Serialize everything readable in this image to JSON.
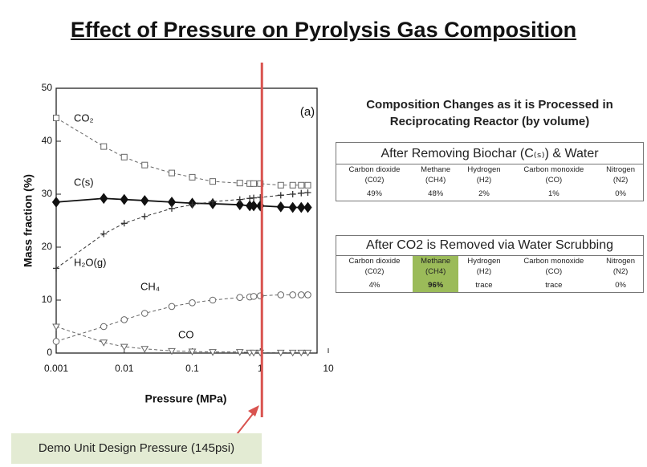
{
  "title": "Effect of Pressure on Pyrolysis Gas Composition",
  "chart_data": {
    "type": "line",
    "annotation": "(a)",
    "xlabel": "Pressure (MPa)",
    "ylabel": "Mass fraction (%)",
    "xscale": "log",
    "xlim": [
      0.001,
      10
    ],
    "xticks": [
      0.001,
      0.01,
      0.1,
      1,
      10
    ],
    "ylim": [
      0,
      50
    ],
    "yticks": [
      0,
      10,
      20,
      30,
      40,
      50
    ],
    "x": [
      0.001,
      0.005,
      0.01,
      0.02,
      0.05,
      0.1,
      0.2,
      0.5,
      0.7,
      0.8,
      1,
      2,
      3,
      4,
      5
    ],
    "series": [
      {
        "name": "CO₂",
        "color": "#666666",
        "marker": "square",
        "dash": true,
        "values": [
          44.4,
          39,
          37,
          35.5,
          34,
          33.2,
          32.4,
          32.1,
          32,
          32,
          32,
          31.7,
          31.7,
          31.7,
          31.7
        ]
      },
      {
        "name": "C(s)",
        "color": "#111111",
        "marker": "diamond",
        "dash": false,
        "values": [
          28.5,
          29.2,
          29,
          28.8,
          28.5,
          28.3,
          28.2,
          28,
          27.8,
          27.8,
          27.8,
          27.6,
          27.5,
          27.5,
          27.5
        ]
      },
      {
        "name": "H₂O(g)",
        "color": "#333333",
        "marker": "plus",
        "dash": true,
        "values": [
          16,
          22.5,
          24.5,
          25.8,
          27.3,
          28,
          28.6,
          29,
          29.2,
          29.3,
          29.4,
          29.8,
          30,
          30.2,
          30.3
        ]
      },
      {
        "name": "CH₄",
        "color": "#666666",
        "marker": "circle",
        "dash": true,
        "values": [
          2.2,
          5,
          6.3,
          7.5,
          8.8,
          9.5,
          10,
          10.5,
          10.6,
          10.7,
          10.8,
          11,
          11,
          11,
          11
        ]
      },
      {
        "name": "CO",
        "color": "#666666",
        "marker": "triangle",
        "dash": true,
        "values": [
          5,
          2,
          1.2,
          0.8,
          0.4,
          0.3,
          0.2,
          0.2,
          0.1,
          0.1,
          0.1,
          0.1,
          0.1,
          0.1,
          0.1
        ]
      }
    ],
    "vline": {
      "x": 1,
      "color": "#d9534f"
    }
  },
  "subtitle": "Composition Changes as it is Processed in Reciprocating Reactor (by volume)",
  "tables": [
    {
      "caption": "After Removing Biochar (C₍ₛ₎) & Water",
      "names": [
        "Carbon dioxide",
        "Methane",
        "Hydrogen",
        "Carbon monoxide",
        "Nitrogen"
      ],
      "formulas": [
        "(C02)",
        "(CH4)",
        "(H2)",
        "(CO)",
        "(N2)"
      ],
      "values": [
        "49%",
        "48%",
        "2%",
        "1%",
        "0%"
      ]
    },
    {
      "caption": "After CO2 is Removed via Water Scrubbing",
      "names": [
        "Carbon dioxide",
        "Methane",
        "Hydrogen",
        "Carbon monoxide",
        "Nitrogen"
      ],
      "formulas": [
        "(C02)",
        "(CH4)",
        "(H2)",
        "(CO)",
        "(N2)"
      ],
      "values": [
        "4%",
        "96%",
        "trace",
        "trace",
        "0%"
      ],
      "highlight": {
        "column": 1,
        "color": "#9bbb59"
      }
    }
  ],
  "note": "Demo Unit Design Pressure (145psi)"
}
